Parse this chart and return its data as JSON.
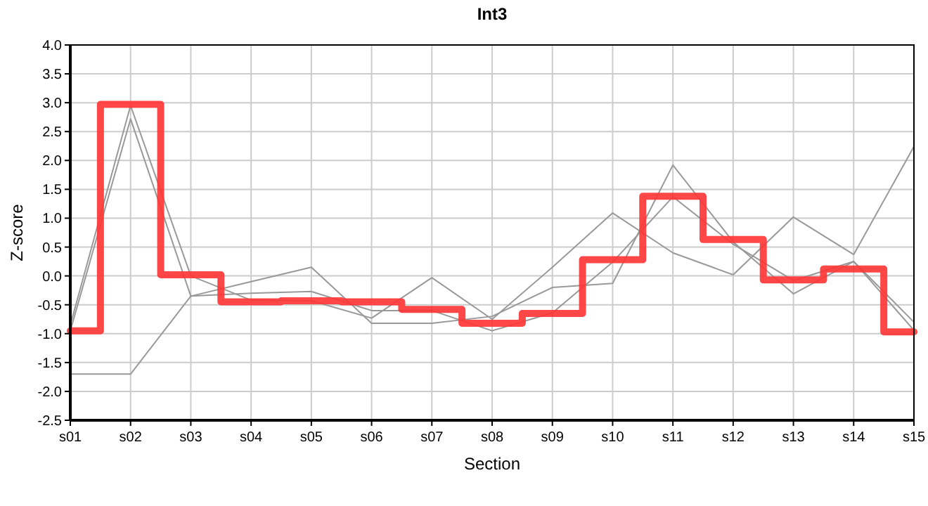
{
  "chart_data": {
    "type": "line",
    "title": "Int3",
    "xlabel": "Section",
    "ylabel": "Z-score",
    "categories": [
      "s01",
      "s02",
      "s03",
      "s04",
      "s05",
      "s06",
      "s07",
      "s08",
      "s09",
      "s10",
      "s11",
      "s12",
      "s13",
      "s14",
      "s15"
    ],
    "series": [
      {
        "color": "#999999",
        "values": [
          -0.85,
          2.95,
          0.0,
          -0.42,
          -0.43,
          -0.73,
          -0.03,
          -0.75,
          0.15,
          1.09,
          0.4,
          0.02,
          1.02,
          0.37,
          2.24
        ]
      },
      {
        "color": "#999999",
        "values": [
          -0.95,
          2.72,
          -0.35,
          -0.1,
          0.15,
          -0.82,
          -0.82,
          -0.7,
          -0.2,
          -0.13,
          1.92,
          0.59,
          -0.31,
          0.25,
          -0.94
        ]
      },
      {
        "color": "#999999",
        "values": [
          -1.7,
          -1.7,
          -0.35,
          -0.3,
          -0.27,
          -0.6,
          -0.6,
          -0.95,
          -0.64,
          0.24,
          1.37,
          0.55,
          -0.08,
          0.25,
          -0.8
        ]
      },
      {
        "type": "step",
        "color": "#ff3333",
        "values": [
          -0.95,
          2.97,
          0.02,
          -0.45,
          -0.43,
          -0.45,
          -0.58,
          -0.82,
          -0.65,
          0.28,
          1.38,
          0.63,
          -0.07,
          0.12,
          -0.97
        ]
      }
    ],
    "ylim": [
      -2.5,
      4.0
    ],
    "yticks": [
      {
        "value": -2.5,
        "label": "-2.5"
      },
      {
        "value": -2,
        "label": "-2.0"
      },
      {
        "value": -1.5,
        "label": "-1.5"
      },
      {
        "value": -1,
        "label": "-1.0"
      },
      {
        "value": -0.5,
        "label": "-0.5"
      },
      {
        "value": 0,
        "label": "0.0"
      },
      {
        "value": 0.5,
        "label": "0.5"
      },
      {
        "value": 1,
        "label": "1.0"
      },
      {
        "value": 1.5,
        "label": "1.5"
      },
      {
        "value": 2,
        "label": "2.0"
      },
      {
        "value": 2.5,
        "label": "2.5"
      },
      {
        "value": 3,
        "label": "3.0"
      },
      {
        "value": 3.5,
        "label": "3.5"
      },
      {
        "value": 4,
        "label": "4.0"
      }
    ],
    "grid": true,
    "marker": "none",
    "line_style": "solid"
  }
}
